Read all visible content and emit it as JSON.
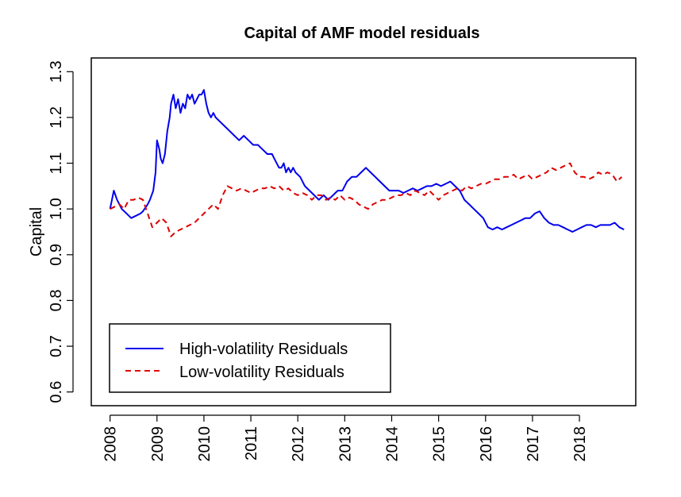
{
  "chart_data": {
    "type": "line",
    "title": "Capital of AMF model residuals",
    "xlabel": "",
    "ylabel": "Capital",
    "xlim": [
      2007.6,
      2019.2
    ],
    "ylim": [
      0.57,
      1.33
    ],
    "xticks": [
      2008,
      2009,
      2010,
      2011,
      2012,
      2013,
      2014,
      2015,
      2016,
      2017,
      2018
    ],
    "xtick_labels": [
      "2008",
      "2009",
      "2010",
      "2011",
      "2012",
      "2013",
      "2014",
      "2015",
      "2016",
      "2017",
      "2018"
    ],
    "yticks": [
      0.6,
      0.7,
      0.8,
      0.9,
      1.0,
      1.1,
      1.2,
      1.3
    ],
    "ytick_labels": [
      "0.6",
      "0.7",
      "0.8",
      "0.9",
      "1.0",
      "1.1",
      "1.2",
      "1.3"
    ],
    "legend_position": "bottom-left",
    "series": [
      {
        "name": "High-volatility Residuals",
        "color": "#0000ee",
        "dash": "solid",
        "x": [
          2008.0,
          2008.08,
          2008.15,
          2008.25,
          2008.35,
          2008.45,
          2008.55,
          2008.65,
          2008.7,
          2008.8,
          2008.85,
          2008.92,
          2008.97,
          2009.0,
          2009.05,
          2009.08,
          2009.12,
          2009.17,
          2009.22,
          2009.27,
          2009.3,
          2009.35,
          2009.4,
          2009.45,
          2009.5,
          2009.55,
          2009.6,
          2009.65,
          2009.7,
          2009.75,
          2009.8,
          2009.85,
          2009.9,
          2009.95,
          2010.0,
          2010.05,
          2010.1,
          2010.15,
          2010.2,
          2010.25,
          2010.35,
          2010.45,
          2010.55,
          2010.65,
          2010.75,
          2010.85,
          2010.95,
          2011.05,
          2011.15,
          2011.25,
          2011.35,
          2011.45,
          2011.5,
          2011.55,
          2011.6,
          2011.65,
          2011.7,
          2011.75,
          2011.8,
          2011.85,
          2011.9,
          2011.95,
          2012.05,
          2012.15,
          2012.25,
          2012.35,
          2012.45,
          2012.55,
          2012.65,
          2012.75,
          2012.85,
          2012.95,
          2013.05,
          2013.15,
          2013.25,
          2013.35,
          2013.45,
          2013.55,
          2013.65,
          2013.75,
          2013.85,
          2013.95,
          2014.05,
          2014.15,
          2014.25,
          2014.35,
          2014.45,
          2014.55,
          2014.65,
          2014.75,
          2014.85,
          2014.95,
          2015.05,
          2015.15,
          2015.25,
          2015.35,
          2015.45,
          2015.55,
          2015.65,
          2015.75,
          2015.85,
          2015.95,
          2016.05,
          2016.15,
          2016.25,
          2016.35,
          2016.45,
          2016.55,
          2016.65,
          2016.75,
          2016.85,
          2016.95,
          2017.05,
          2017.15,
          2017.25,
          2017.35,
          2017.45,
          2017.55,
          2017.65,
          2017.75,
          2017.85,
          2017.95,
          2018.05,
          2018.15,
          2018.25,
          2018.35,
          2018.45,
          2018.55,
          2018.65,
          2018.75,
          2018.85,
          2018.95
        ],
        "y": [
          1.0,
          1.04,
          1.02,
          1.0,
          0.99,
          0.98,
          0.985,
          0.99,
          0.995,
          1.01,
          1.02,
          1.04,
          1.08,
          1.15,
          1.13,
          1.11,
          1.1,
          1.12,
          1.17,
          1.2,
          1.23,
          1.25,
          1.22,
          1.24,
          1.21,
          1.23,
          1.22,
          1.25,
          1.24,
          1.25,
          1.23,
          1.24,
          1.25,
          1.25,
          1.26,
          1.23,
          1.21,
          1.2,
          1.21,
          1.2,
          1.19,
          1.18,
          1.17,
          1.16,
          1.15,
          1.16,
          1.15,
          1.14,
          1.14,
          1.13,
          1.12,
          1.12,
          1.11,
          1.1,
          1.09,
          1.09,
          1.1,
          1.08,
          1.09,
          1.08,
          1.09,
          1.08,
          1.07,
          1.05,
          1.04,
          1.03,
          1.02,
          1.03,
          1.02,
          1.03,
          1.04,
          1.04,
          1.06,
          1.07,
          1.07,
          1.08,
          1.09,
          1.08,
          1.07,
          1.06,
          1.05,
          1.04,
          1.04,
          1.04,
          1.035,
          1.04,
          1.045,
          1.04,
          1.045,
          1.05,
          1.05,
          1.055,
          1.05,
          1.055,
          1.06,
          1.05,
          1.04,
          1.02,
          1.01,
          1.0,
          0.99,
          0.98,
          0.96,
          0.955,
          0.96,
          0.955,
          0.96,
          0.965,
          0.97,
          0.975,
          0.98,
          0.98,
          0.99,
          0.995,
          0.98,
          0.97,
          0.965,
          0.965,
          0.96,
          0.955,
          0.95,
          0.955,
          0.96,
          0.965,
          0.965,
          0.96,
          0.965,
          0.965,
          0.965,
          0.97,
          0.96,
          0.955
        ]
      },
      {
        "name": "Low-volatility Residuals",
        "color": "#dd0000",
        "dash": "dashed",
        "x": [
          2008.0,
          2008.1,
          2008.2,
          2008.3,
          2008.4,
          2008.5,
          2008.6,
          2008.7,
          2008.8,
          2008.9,
          2009.0,
          2009.1,
          2009.2,
          2009.3,
          2009.4,
          2009.5,
          2009.6,
          2009.7,
          2009.8,
          2009.9,
          2010.0,
          2010.1,
          2010.2,
          2010.3,
          2010.4,
          2010.5,
          2010.6,
          2010.7,
          2010.8,
          2010.9,
          2011.0,
          2011.1,
          2011.2,
          2011.3,
          2011.4,
          2011.5,
          2011.6,
          2011.7,
          2011.8,
          2011.9,
          2012.0,
          2012.1,
          2012.2,
          2012.3,
          2012.4,
          2012.5,
          2012.6,
          2012.7,
          2012.8,
          2012.9,
          2013.0,
          2013.1,
          2013.2,
          2013.3,
          2013.4,
          2013.5,
          2013.6,
          2013.7,
          2013.8,
          2013.9,
          2014.0,
          2014.1,
          2014.2,
          2014.3,
          2014.4,
          2014.5,
          2014.6,
          2014.7,
          2014.8,
          2014.9,
          2015.0,
          2015.1,
          2015.2,
          2015.3,
          2015.4,
          2015.5,
          2015.6,
          2015.7,
          2015.8,
          2015.9,
          2016.0,
          2016.1,
          2016.2,
          2016.3,
          2016.4,
          2016.5,
          2016.6,
          2016.7,
          2016.8,
          2016.9,
          2017.0,
          2017.1,
          2017.2,
          2017.3,
          2017.4,
          2017.5,
          2017.6,
          2017.7,
          2017.8,
          2017.9,
          2018.0,
          2018.1,
          2018.2,
          2018.3,
          2018.4,
          2018.5,
          2018.6,
          2018.7,
          2018.8,
          2018.9
        ],
        "y": [
          1.0,
          1.005,
          1.01,
          1.0,
          1.02,
          1.02,
          1.025,
          1.02,
          0.99,
          0.96,
          0.97,
          0.98,
          0.97,
          0.94,
          0.95,
          0.955,
          0.96,
          0.965,
          0.97,
          0.98,
          0.99,
          1.0,
          1.01,
          1.0,
          1.03,
          1.05,
          1.045,
          1.04,
          1.045,
          1.04,
          1.035,
          1.04,
          1.045,
          1.045,
          1.05,
          1.045,
          1.05,
          1.04,
          1.045,
          1.035,
          1.03,
          1.035,
          1.03,
          1.02,
          1.03,
          1.03,
          1.02,
          1.025,
          1.02,
          1.03,
          1.02,
          1.025,
          1.02,
          1.01,
          1.005,
          1.0,
          1.01,
          1.015,
          1.02,
          1.02,
          1.025,
          1.03,
          1.03,
          1.035,
          1.03,
          1.04,
          1.035,
          1.03,
          1.04,
          1.03,
          1.02,
          1.03,
          1.035,
          1.04,
          1.045,
          1.04,
          1.05,
          1.045,
          1.05,
          1.055,
          1.055,
          1.06,
          1.065,
          1.065,
          1.07,
          1.07,
          1.075,
          1.065,
          1.07,
          1.075,
          1.065,
          1.07,
          1.075,
          1.08,
          1.09,
          1.085,
          1.09,
          1.095,
          1.1,
          1.08,
          1.07,
          1.07,
          1.065,
          1.07,
          1.08,
          1.075,
          1.08,
          1.075,
          1.06,
          1.07
        ]
      }
    ]
  }
}
